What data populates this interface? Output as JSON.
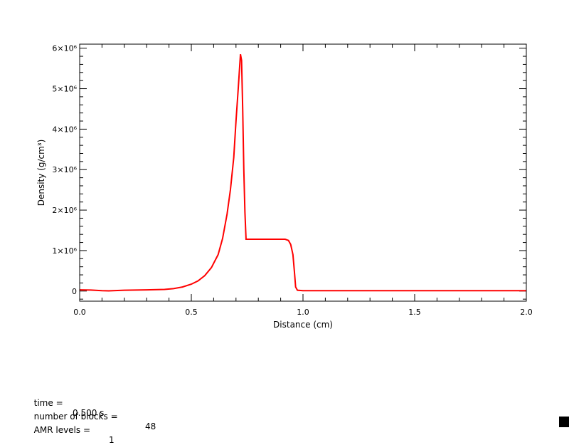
{
  "chart_data": {
    "type": "line",
    "title": "",
    "xlabel": "Distance (cm)",
    "ylabel": "Density (g/cm³)",
    "xlim": [
      0.0,
      2.0
    ],
    "ylim": [
      -250000,
      6100000
    ],
    "x_ticks": [
      {
        "value": 0.0,
        "label": "0.0"
      },
      {
        "value": 0.5,
        "label": "0.5"
      },
      {
        "value": 1.0,
        "label": "1.0"
      },
      {
        "value": 1.5,
        "label": "1.5"
      },
      {
        "value": 2.0,
        "label": "2.0"
      }
    ],
    "y_ticks": [
      {
        "value": 0,
        "label": "0"
      },
      {
        "value": 1000000,
        "label": "1×10⁶"
      },
      {
        "value": 2000000,
        "label": "2×10⁶"
      },
      {
        "value": 3000000,
        "label": "3×10⁶"
      },
      {
        "value": 4000000,
        "label": "4×10⁶"
      },
      {
        "value": 5000000,
        "label": "5×10⁶"
      },
      {
        "value": 6000000,
        "label": "6×10⁶"
      }
    ],
    "grid": false,
    "line_color": "#ff0000",
    "series": [
      {
        "x": [
          0.0,
          0.05,
          0.1,
          0.13,
          0.2,
          0.3,
          0.38,
          0.42,
          0.46,
          0.5,
          0.53,
          0.56,
          0.59,
          0.62,
          0.64,
          0.66,
          0.675,
          0.69,
          0.7,
          0.71,
          0.72,
          0.725,
          0.73,
          0.735,
          0.74,
          0.745,
          0.8,
          0.85,
          0.9,
          0.92,
          0.935,
          0.945,
          0.955,
          0.962,
          0.967,
          0.975,
          1.0,
          1.5,
          2.0
        ],
        "y": [
          30000,
          25000,
          10000,
          5000,
          20000,
          30000,
          40000,
          60000,
          100000,
          170000,
          250000,
          380000,
          580000,
          900000,
          1300000,
          1900000,
          2500000,
          3300000,
          4200000,
          5000000,
          5850000,
          5700000,
          4500000,
          3000000,
          1950000,
          1280000,
          1280000,
          1280000,
          1280000,
          1280000,
          1250000,
          1150000,
          900000,
          450000,
          100000,
          20000,
          10000,
          10000,
          10000
        ]
      }
    ]
  },
  "info": {
    "time_label": "time =",
    "time_value": "0.500 s",
    "blocks_label": "number of blocks =",
    "blocks_value": "48",
    "levels_label": "AMR levels =",
    "levels_value": "1"
  }
}
